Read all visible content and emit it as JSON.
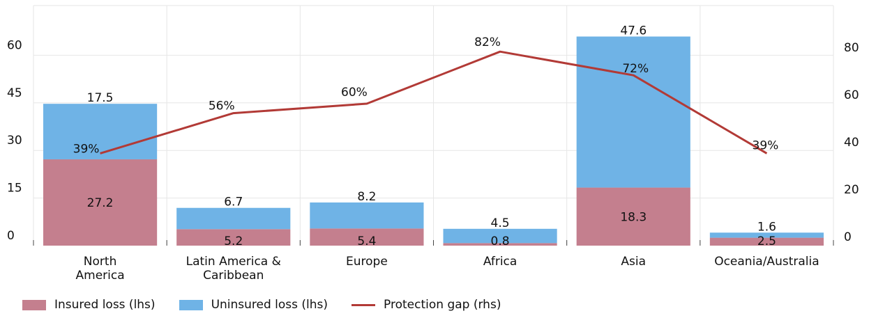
{
  "colors": {
    "insured": "#c47f8e",
    "uninsured": "#6fb3e6",
    "gap": "#b23a36",
    "grid": "#e6e6e6"
  },
  "chart_data": {
    "type": "bar",
    "stacked": true,
    "categories": [
      [
        "North",
        "America"
      ],
      [
        "Latin America &",
        "Caribbean"
      ],
      [
        "Europe"
      ],
      [
        "Africa"
      ],
      [
        "Asia"
      ],
      [
        "Oceania/Australia"
      ]
    ],
    "series": [
      {
        "name": "Insured loss  (lhs)",
        "axis": "left",
        "values": [
          27.2,
          5.2,
          5.4,
          0.8,
          18.3,
          2.5
        ],
        "value_labels": [
          "27.2",
          "5.2",
          "5.4",
          "0.8",
          "18.3",
          "2.5"
        ]
      },
      {
        "name": "Uninsured loss  (lhs)",
        "axis": "left",
        "values": [
          17.5,
          6.7,
          8.2,
          4.5,
          47.6,
          1.6
        ],
        "value_labels": [
          "17.5",
          "6.7",
          "8.2",
          "4.5",
          "47.6",
          "1.6"
        ]
      },
      {
        "name": "Protection gap (rhs)",
        "type": "line",
        "axis": "right",
        "values": [
          39,
          56,
          60,
          82,
          72,
          39
        ],
        "value_labels": [
          "39%",
          "56%",
          "60%",
          "82%",
          "72%",
          "39%"
        ]
      }
    ],
    "left_axis": {
      "ticks": [
        "0",
        "15",
        "30",
        "45",
        "60"
      ],
      "range": [
        0,
        67.5
      ]
    },
    "right_axis": {
      "ticks": [
        "0",
        "20",
        "40",
        "60",
        "80"
      ],
      "range": [
        0,
        90
      ]
    },
    "grid": true,
    "legend_position": "bottom-left"
  }
}
